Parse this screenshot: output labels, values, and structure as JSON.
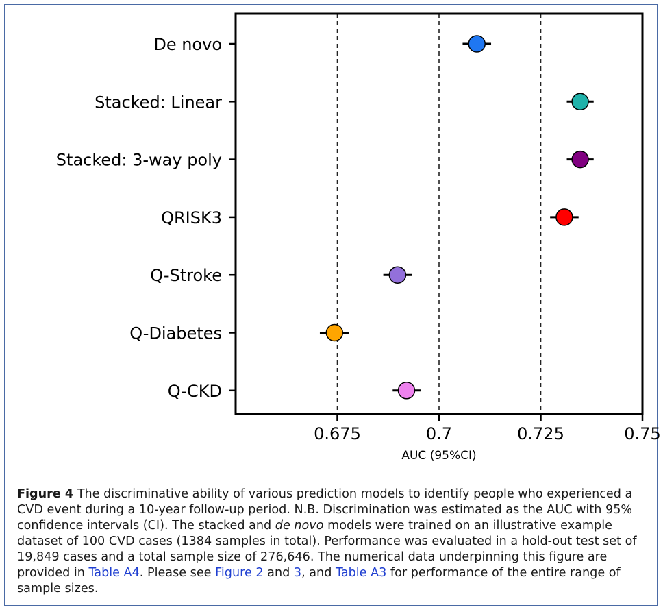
{
  "chart_data": {
    "type": "scatter",
    "orientation": "horizontal",
    "xlabel": "AUC (95%CI)",
    "xlim": [
      0.65,
      0.75
    ],
    "xticks": [
      0.675,
      0.7,
      0.725,
      0.75
    ],
    "xtick_labels": [
      "0.675",
      "0.7",
      "0.725",
      "0.75"
    ],
    "reference_lines": [
      0.675,
      0.7,
      0.725
    ],
    "categories": [
      "De novo",
      "Stacked: Linear",
      "Stacked: 3-way poly",
      "QRISK3",
      "Q-Stroke",
      "Q-Diabetes",
      "Q-CKD"
    ],
    "points": [
      {
        "label": "De novo",
        "auc": 0.7093,
        "ci": [
          0.7058,
          0.7128
        ],
        "color": "#1f77f2"
      },
      {
        "label": "Stacked: Linear",
        "auc": 0.7347,
        "ci": [
          0.7314,
          0.738
        ],
        "color": "#20b2aa"
      },
      {
        "label": "Stacked: 3-way poly",
        "auc": 0.7347,
        "ci": [
          0.7314,
          0.738
        ],
        "color": "#800080"
      },
      {
        "label": "QRISK3",
        "auc": 0.7308,
        "ci": [
          0.7273,
          0.7343
        ],
        "color": "#ff0000"
      },
      {
        "label": "Q-Stroke",
        "auc": 0.6898,
        "ci": [
          0.6863,
          0.6933
        ],
        "color": "#9370db"
      },
      {
        "label": "Q-Diabetes",
        "auc": 0.6743,
        "ci": [
          0.6707,
          0.6779
        ],
        "color": "#ffa500"
      },
      {
        "label": "Q-CKD",
        "auc": 0.692,
        "ci": [
          0.6886,
          0.6955
        ],
        "color": "#ee82ee"
      }
    ]
  },
  "caption": {
    "label": "Figure 4",
    "p1": " The discriminative ability of various prediction models to identify people who experienced a CVD event during a 10-year follow-up period. N.B. Discrimination was estimated as the AUC with 95% confidence intervals (CI). The stacked and ",
    "italic": "de novo",
    "p2": " models were trained on an illustrative example dataset of 100 CVD cases (1384 samples in total). Performance was evaluated in a hold-out test set of 19,849 cases and a total sample size of 276,646. The numerical data underpinning this figure are provided in ",
    "ref1": "Table A4",
    "p3": ". Please see ",
    "ref2": "Figure 2",
    "p4": " and ",
    "ref3": "3",
    "p5": ", and ",
    "ref4": "Table A3",
    "p6": " for performance of the entire range of sample sizes."
  }
}
